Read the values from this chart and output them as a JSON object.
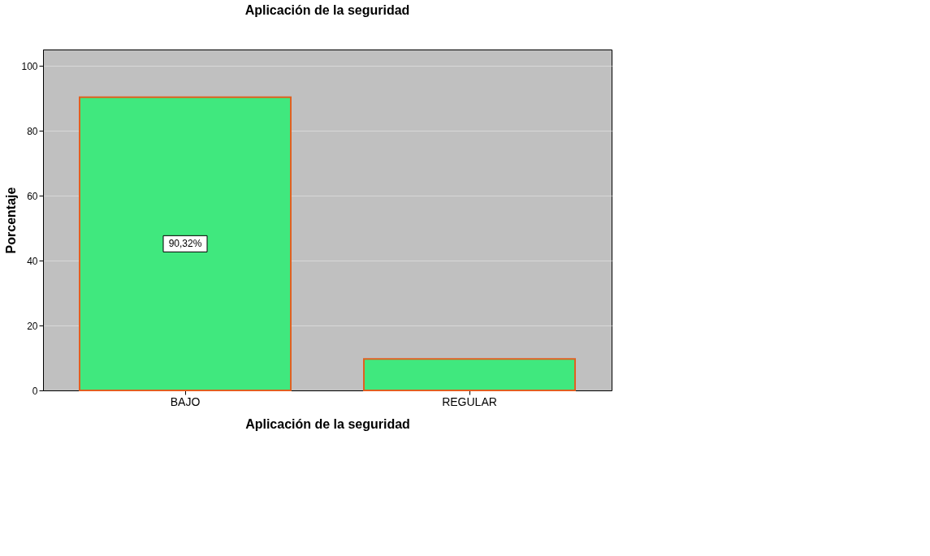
{
  "chart_data": {
    "type": "bar",
    "title": "Aplicación de la seguridad",
    "xlabel": "Aplicación de la seguridad",
    "ylabel": "Porcentaje",
    "categories": [
      "BAJO",
      "REGULAR"
    ],
    "values": [
      90.32,
      9.7
    ],
    "value_labels": [
      "90,32%",
      null
    ],
    "color": "#40e87e",
    "ylim": [
      0,
      105
    ],
    "yticks": [
      0,
      20,
      40,
      60,
      80,
      100
    ],
    "grid": "y"
  }
}
